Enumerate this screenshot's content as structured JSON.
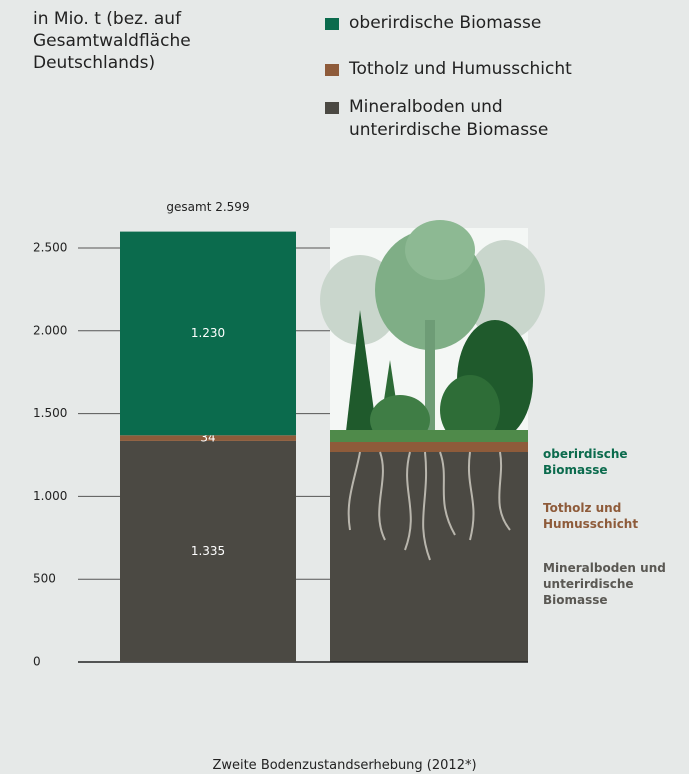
{
  "chart_data": {
    "type": "stacked_bar",
    "y_label": "in Mio. t (bez. auf Gesamtwaldfläche Deutschlands)",
    "categories": [
      "Zweite Bodenzustandserhebung (2012*)"
    ],
    "series": [
      {
        "name": "Mineralboden und unterirdische Biomasse",
        "color": "#4b4943",
        "values": [
          1335
        ],
        "value_labels": [
          "1.335"
        ]
      },
      {
        "name": "Totholz und Humusschicht",
        "color": "#8e5b3a",
        "values": [
          34
        ]
      },
      {
        "name": "oberirdische Biomasse",
        "color": "#0b6b4d",
        "values": [
          1230
        ],
        "value_labels": [
          "1.230"
        ]
      }
    ],
    "total": 2599,
    "total_label": "gesamt 2.599",
    "ylim": [
      0,
      2500
    ],
    "yticks": [
      0,
      500,
      {
        "value": 1000,
        "label": "1.000"
      },
      {
        "value": 1500,
        "label": "1.500"
      },
      {
        "value": 2000,
        "label": "2.000"
      },
      {
        "value": 2500,
        "label": "2.500"
      }
    ],
    "grid": true
  }
}
